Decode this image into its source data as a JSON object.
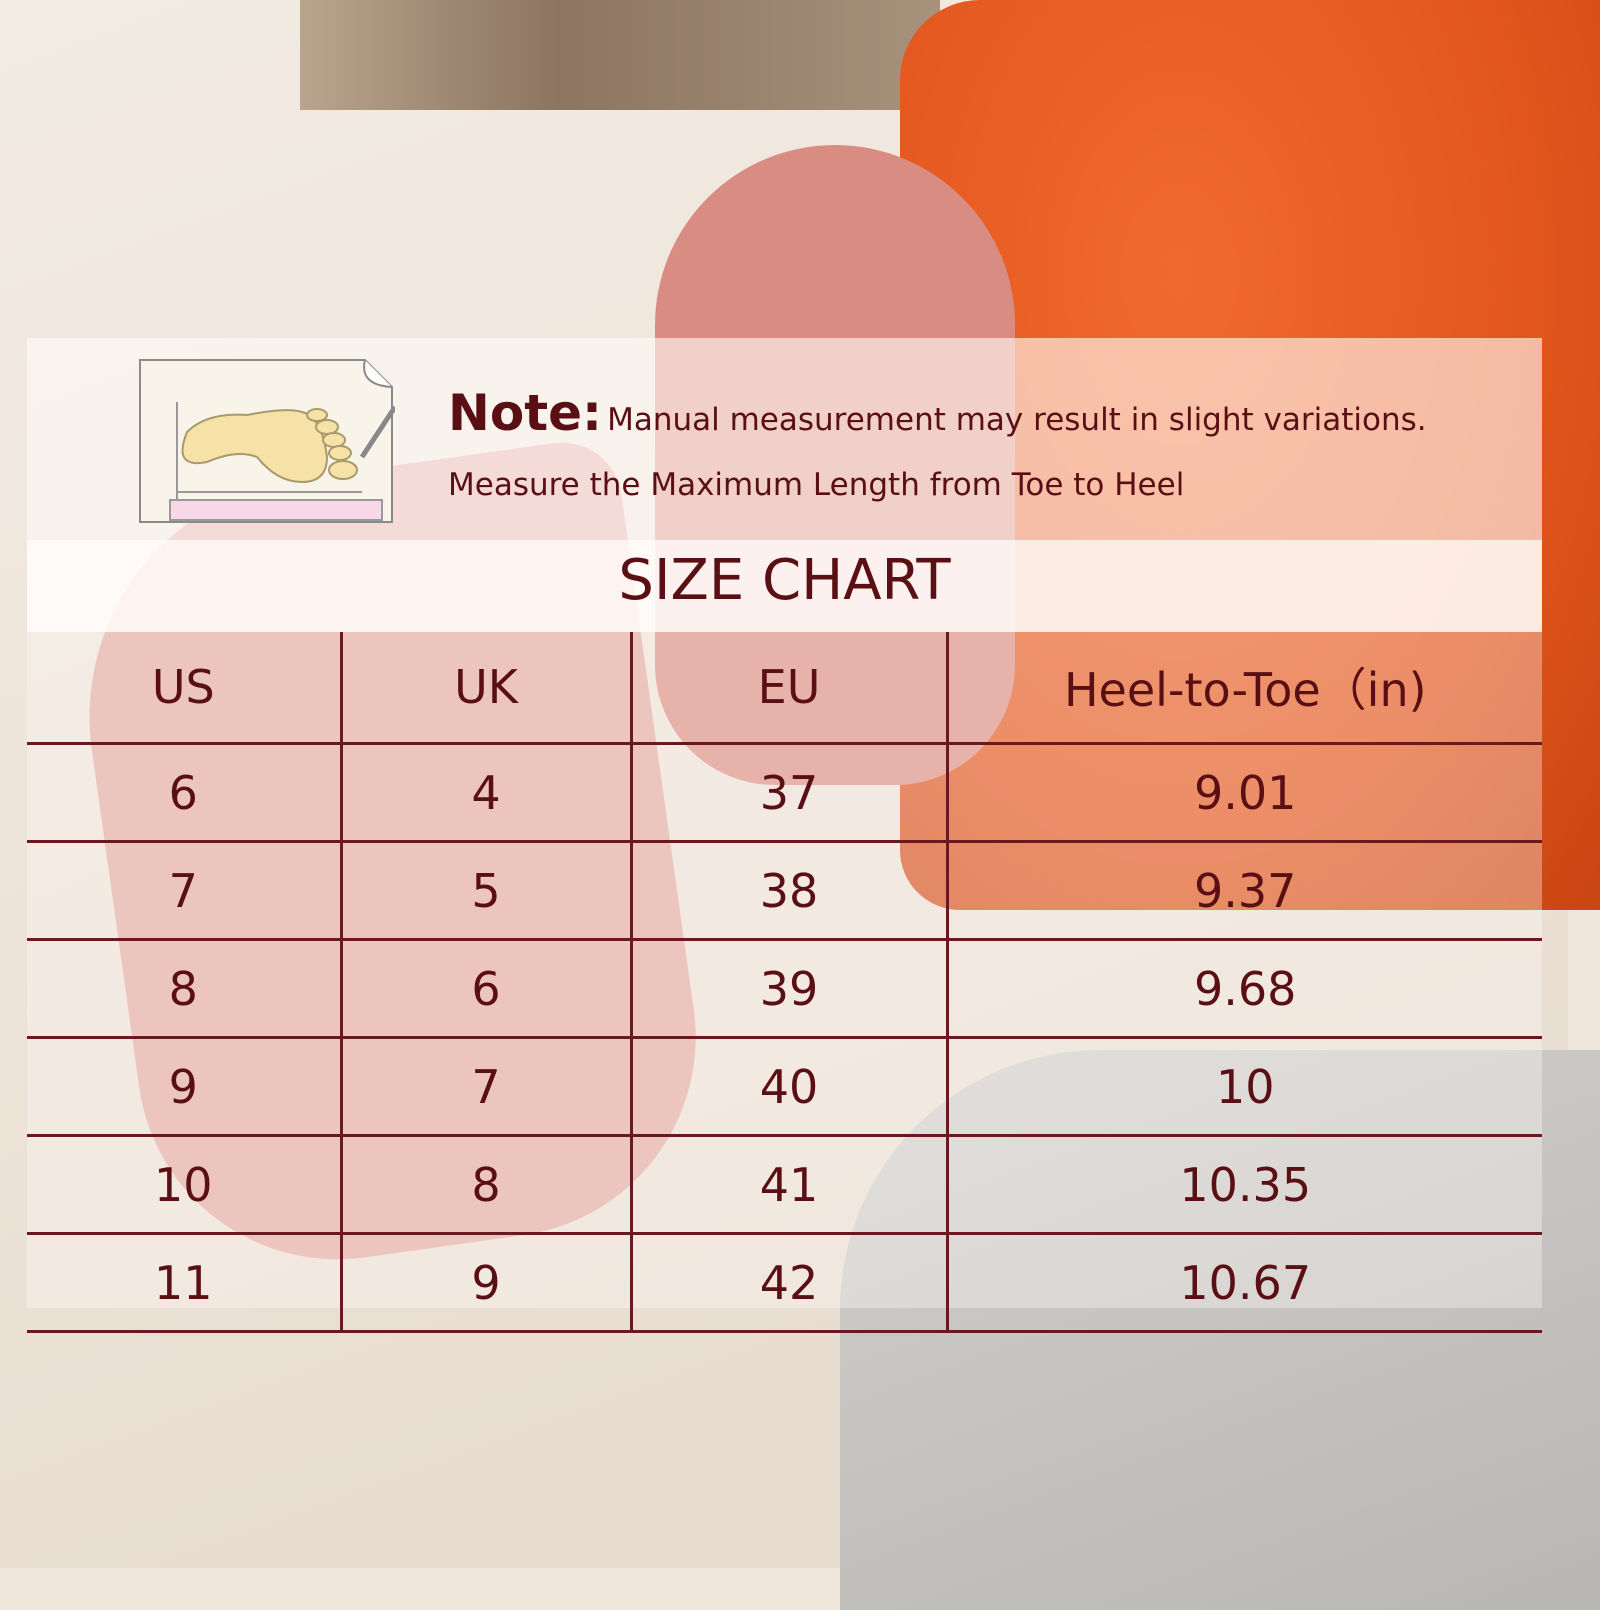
{
  "note": {
    "label": "Note:",
    "text": "Manual measurement may result in slight variations.",
    "instruction": "Measure the Maximum Length from Toe to Heel",
    "icon": "foot-measurement-icon"
  },
  "title": "SIZE CHART",
  "colors": {
    "text": "#5a0f14",
    "lines": "#6a1a1e"
  },
  "chart_data": {
    "type": "table",
    "title": "SIZE CHART",
    "columns": [
      "US",
      "UK",
      "EU",
      "Heel-to-Toe（in)"
    ],
    "rows": [
      [
        "6",
        "4",
        "37",
        "9.01"
      ],
      [
        "7",
        "5",
        "38",
        "9.37"
      ],
      [
        "8",
        "6",
        "39",
        "9.68"
      ],
      [
        "9",
        "7",
        "40",
        "10"
      ],
      [
        "10",
        "8",
        "41",
        "10.35"
      ],
      [
        "11",
        "9",
        "42",
        "10.67"
      ]
    ]
  }
}
